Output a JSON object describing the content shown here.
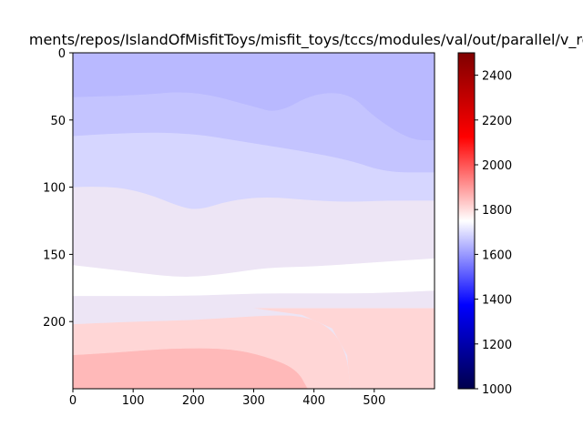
{
  "chart_data": {
    "type": "heatmap",
    "title": "ments/repos/IslandOfMisfitToys/misfit_toys/tccs/modules/val/out/parallel/v_reco",
    "xlim": [
      0,
      600
    ],
    "ylim": [
      250,
      0
    ],
    "x_ticks": [
      "0",
      "100",
      "200",
      "300",
      "400",
      "500"
    ],
    "y_ticks": [
      "0",
      "50",
      "100",
      "150",
      "200"
    ],
    "colorbar": {
      "min": 1000,
      "max": 2500,
      "ticks": [
        "1000",
        "1200",
        "1400",
        "1600",
        "1800",
        "2000",
        "2200",
        "2400"
      ],
      "colormap": "seismic"
    },
    "contour_bands": [
      {
        "range": [
          1550,
          1600
        ],
        "color": "#b9b9ff",
        "boundary_depth": [
          [
            0,
            0
          ],
          [
            600,
            0
          ]
        ]
      },
      {
        "range": [
          1600,
          1650
        ],
        "color": "#c4c4ff",
        "boundary_depth": [
          [
            0,
            33
          ],
          [
            100,
            32
          ],
          [
            200,
            28
          ],
          [
            300,
            40
          ],
          [
            340,
            45
          ],
          [
            400,
            30
          ],
          [
            460,
            30
          ],
          [
            500,
            48
          ],
          [
            560,
            65
          ],
          [
            600,
            65
          ]
        ]
      },
      {
        "range": [
          1650,
          1700
        ],
        "color": "#d6d6ff",
        "boundary_depth": [
          [
            0,
            62
          ],
          [
            100,
            59
          ],
          [
            200,
            60
          ],
          [
            280,
            66
          ],
          [
            380,
            73
          ],
          [
            460,
            80
          ],
          [
            520,
            89
          ],
          [
            600,
            89
          ]
        ]
      },
      {
        "range": [
          1700,
          1750
        ],
        "color": "#ede5f5",
        "boundary_depth": [
          [
            0,
            100
          ],
          [
            60,
            99
          ],
          [
            120,
            104
          ],
          [
            180,
            115
          ],
          [
            210,
            117
          ],
          [
            260,
            110
          ],
          [
            320,
            107
          ],
          [
            400,
            110
          ],
          [
            460,
            111
          ],
          [
            520,
            110
          ],
          [
            600,
            110
          ]
        ]
      },
      {
        "range": [
          1750,
          1800
        ],
        "color": "#ffffff",
        "boundary_depth": [
          [
            0,
            158
          ],
          [
            60,
            161
          ],
          [
            150,
            166
          ],
          [
            200,
            167
          ],
          [
            260,
            164
          ],
          [
            320,
            160
          ],
          [
            400,
            159
          ],
          [
            500,
            156
          ],
          [
            600,
            153
          ]
        ]
      },
      {
        "range": [
          1800,
          1850
        ],
        "color": "#ede5f5",
        "boundary_depth": [
          [
            0,
            181
          ],
          [
            100,
            181
          ],
          [
            200,
            181
          ],
          [
            300,
            179
          ],
          [
            400,
            179
          ],
          [
            500,
            179
          ],
          [
            600,
            177
          ]
        ]
      },
      {
        "range": [
          1850,
          1900
        ],
        "color": "#ffd6d6",
        "boundary_depth": [
          [
            0,
            202
          ],
          [
            100,
            200
          ],
          [
            200,
            199
          ],
          [
            300,
            196
          ],
          [
            380,
            195
          ],
          [
            430,
            205
          ],
          [
            455,
            225
          ],
          [
            460,
            250
          ]
        ]
      },
      {
        "range": [
          1900,
          1950
        ],
        "color": "#ffc4c4",
        "boundary_depth": [
          [
            0,
            225
          ],
          [
            80,
            223
          ],
          [
            160,
            220
          ],
          [
            260,
            220
          ],
          [
            320,
            226
          ],
          [
            370,
            235
          ],
          [
            390,
            250
          ]
        ]
      },
      {
        "range": [
          1950,
          2000
        ],
        "color": "#ffb9b9",
        "boundary_depth": []
      }
    ],
    "xlabel": "",
    "ylabel": ""
  }
}
